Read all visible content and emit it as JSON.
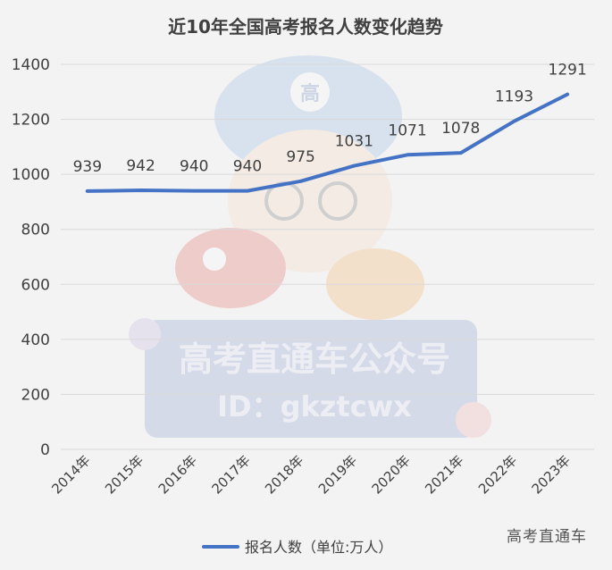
{
  "chart_data": {
    "type": "line",
    "title": "近10年全国高考报名人数变化趋势",
    "categories": [
      "2014年",
      "2015年",
      "2016年",
      "2017年",
      "2018年",
      "2019年",
      "2020年",
      "2021年",
      "2022年",
      "2023年"
    ],
    "series": [
      {
        "name": "报名人数（单位:万人）",
        "values": [
          939,
          942,
          940,
          940,
          975,
          1031,
          1071,
          1078,
          1193,
          1291
        ]
      }
    ],
    "ylim": [
      0,
      1400
    ],
    "yticks": [
      0,
      200,
      400,
      600,
      800,
      1000,
      1200,
      1400
    ],
    "grid": true,
    "legend": "bottom",
    "data_labels": true
  },
  "watermark": {
    "badge_char": "高",
    "logo_text": "高考直通车公众号",
    "logo_id": "ID：gkztcwx",
    "corner_text": "高考直通车"
  },
  "colors": {
    "line": "#4472c4",
    "grid": "#d9d9d9",
    "text": "#404040",
    "title": "#404040",
    "background": "#f3f3f3"
  }
}
